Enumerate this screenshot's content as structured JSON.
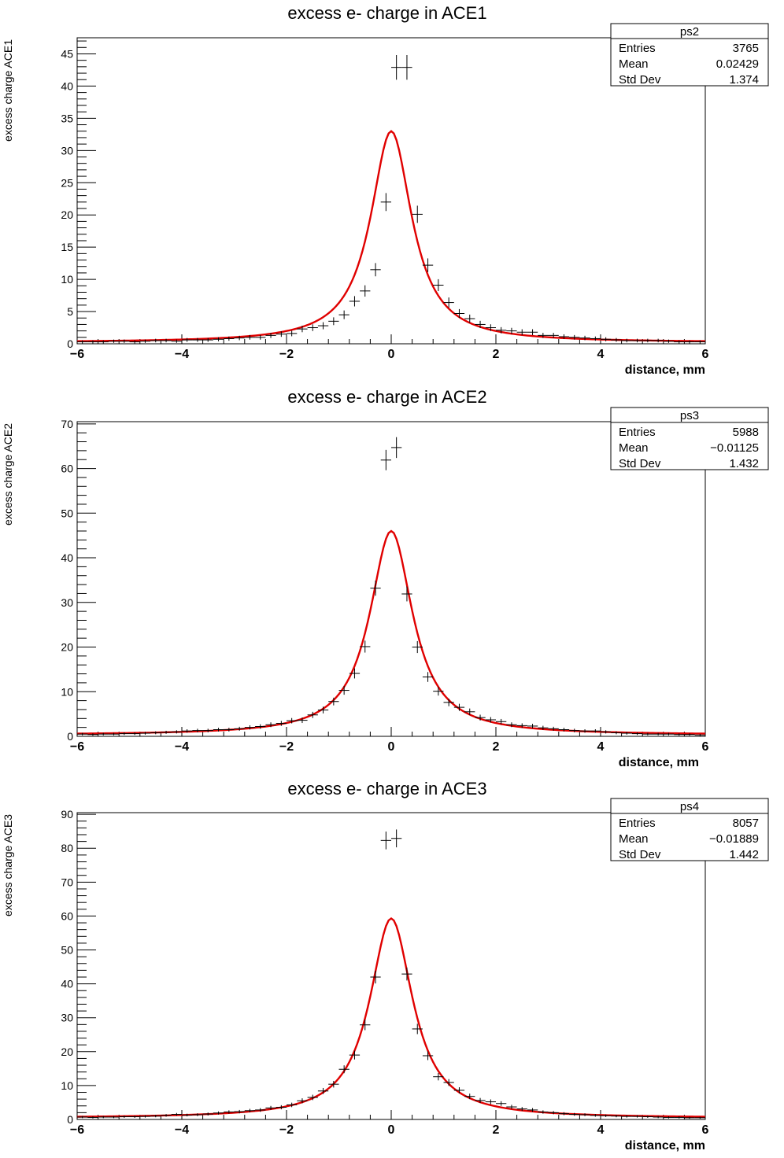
{
  "chart_data": [
    {
      "type": "scatter",
      "title": "excess e- charge in ACE1",
      "xlabel": "distance, mm",
      "ylabel": "excess charge ACE1",
      "xlim": [
        -6,
        6
      ],
      "ylim": [
        0,
        47.5
      ],
      "y_ticks": [
        0,
        5,
        10,
        15,
        20,
        25,
        30,
        35,
        40,
        45
      ],
      "x_ticks": [
        -6,
        -4,
        -2,
        0,
        2,
        4,
        6
      ],
      "legend_position": "top-right",
      "stats": {
        "name": "ps2",
        "rows": [
          {
            "label": "Entries",
            "value": "3765"
          },
          {
            "label": "Mean",
            "value": "0.02429"
          },
          {
            "label": "Std Dev",
            "value": "1.374"
          }
        ]
      },
      "fit": {
        "color": "#e00000",
        "peak": 33,
        "gamma": 0.48,
        "baseline": 0.2
      },
      "points": {
        "x": [
          -5.9,
          -5.7,
          -5.5,
          -5.3,
          -5.1,
          -4.9,
          -4.7,
          -4.5,
          -4.3,
          -4.1,
          -3.9,
          -3.7,
          -3.5,
          -3.3,
          -3.1,
          -2.9,
          -2.7,
          -2.5,
          -2.3,
          -2.1,
          -1.9,
          -1.7,
          -1.5,
          -1.3,
          -1.1,
          -0.9,
          -0.7,
          -0.5,
          -0.3,
          -0.1,
          0.1,
          0.3,
          0.5,
          0.7,
          0.9,
          1.1,
          1.3,
          1.5,
          1.7,
          1.9,
          2.1,
          2.3,
          2.5,
          2.7,
          2.9,
          3.1,
          3.3,
          3.5,
          3.7,
          3.9,
          4.1,
          4.3,
          4.5,
          4.7,
          4.9,
          5.1,
          5.3,
          5.5,
          5.7,
          5.9
        ],
        "y": [
          0.3,
          0.3,
          0.3,
          0.4,
          0.4,
          0.3,
          0.4,
          0.5,
          0.5,
          0.4,
          0.6,
          0.6,
          0.6,
          0.7,
          0.8,
          0.9,
          1.0,
          1.0,
          1.3,
          1.5,
          1.6,
          2.3,
          2.5,
          2.8,
          3.5,
          4.5,
          6.6,
          8.2,
          11.5,
          22.0,
          42.9,
          42.9,
          20.1,
          12.2,
          9.1,
          6.4,
          4.7,
          3.9,
          3.0,
          2.5,
          2.1,
          2.0,
          1.8,
          1.8,
          1.3,
          1.3,
          1.1,
          1.0,
          0.9,
          0.8,
          0.7,
          0.6,
          0.5,
          0.5,
          0.5,
          0.5,
          0.4,
          0.3,
          0.3,
          0.3
        ]
      }
    },
    {
      "type": "scatter",
      "title": "excess e- charge in ACE2",
      "xlabel": "distance, mm",
      "ylabel": "excess charge ACE2",
      "xlim": [
        -6,
        6
      ],
      "ylim": [
        0,
        70.5
      ],
      "y_ticks": [
        0,
        10,
        20,
        30,
        40,
        50,
        60,
        70
      ],
      "x_ticks": [
        -6,
        -4,
        -2,
        0,
        2,
        4,
        6
      ],
      "legend_position": "top-right",
      "stats": {
        "name": "ps3",
        "rows": [
          {
            "label": "Entries",
            "value": "5988"
          },
          {
            "label": "Mean",
            "value": "−0.01125"
          },
          {
            "label": "Std Dev",
            "value": "1.432"
          }
        ]
      },
      "fit": {
        "color": "#e00000",
        "peak": 46,
        "gamma": 0.5,
        "baseline": 0.3
      },
      "points": {
        "x": [
          -5.9,
          -5.7,
          -5.5,
          -5.3,
          -5.1,
          -4.9,
          -4.7,
          -4.5,
          -4.3,
          -4.1,
          -3.9,
          -3.7,
          -3.5,
          -3.3,
          -3.1,
          -2.9,
          -2.7,
          -2.5,
          -2.3,
          -2.1,
          -1.9,
          -1.7,
          -1.5,
          -1.3,
          -1.1,
          -0.9,
          -0.7,
          -0.5,
          -0.3,
          -0.1,
          0.1,
          0.3,
          0.5,
          0.7,
          0.9,
          1.1,
          1.3,
          1.5,
          1.7,
          1.9,
          2.1,
          2.3,
          2.5,
          2.7,
          2.9,
          3.1,
          3.3,
          3.5,
          3.7,
          3.9,
          4.1,
          4.3,
          4.5,
          4.7,
          4.9,
          5.1,
          5.3,
          5.5,
          5.7,
          5.9
        ],
        "y": [
          0.5,
          0.4,
          0.5,
          0.5,
          0.6,
          0.6,
          0.7,
          0.8,
          0.9,
          1.0,
          1.2,
          1.3,
          1.3,
          1.5,
          1.5,
          1.7,
          2.0,
          2.2,
          2.6,
          2.9,
          3.5,
          3.6,
          4.8,
          5.9,
          7.8,
          10.3,
          14.1,
          20.1,
          33.2,
          61.9,
          64.7,
          31.9,
          20.0,
          13.3,
          10.1,
          7.6,
          6.5,
          5.5,
          4.2,
          3.7,
          3.3,
          2.6,
          2.4,
          2.3,
          1.9,
          1.7,
          1.5,
          1.3,
          1.2,
          1.2,
          1.0,
          0.8,
          0.7,
          0.6,
          0.5,
          0.5,
          0.5,
          0.4,
          0.4,
          0.3
        ]
      }
    },
    {
      "type": "scatter",
      "title": "excess e- charge in ACE3",
      "xlabel": "distance, mm",
      "ylabel": "excess charge  ACE3",
      "xlim": [
        -6,
        6
      ],
      "ylim": [
        0,
        90.5
      ],
      "y_ticks": [
        0,
        10,
        20,
        30,
        40,
        50,
        60,
        70,
        80,
        90
      ],
      "x_ticks": [
        -6,
        -4,
        -2,
        0,
        2,
        4,
        6
      ],
      "legend_position": "top-right",
      "stats": {
        "name": "ps4",
        "rows": [
          {
            "label": "Entries",
            "value": "8057"
          },
          {
            "label": "Mean",
            "value": "−0.01889"
          },
          {
            "label": "Std Dev",
            "value": "1.442"
          }
        ]
      },
      "fit": {
        "color": "#e00000",
        "peak": 59.3,
        "gamma": 0.5,
        "baseline": 0.4
      },
      "points": {
        "x": [
          -5.9,
          -5.7,
          -5.5,
          -5.3,
          -5.1,
          -4.9,
          -4.7,
          -4.5,
          -4.3,
          -4.1,
          -3.9,
          -3.7,
          -3.5,
          -3.3,
          -3.1,
          -2.9,
          -2.7,
          -2.5,
          -2.3,
          -2.1,
          -1.9,
          -1.7,
          -1.5,
          -1.3,
          -1.1,
          -0.9,
          -0.7,
          -0.5,
          -0.3,
          -0.1,
          0.1,
          0.3,
          0.5,
          0.7,
          0.9,
          1.1,
          1.3,
          1.5,
          1.7,
          1.9,
          2.1,
          2.3,
          2.5,
          2.7,
          2.9,
          3.1,
          3.3,
          3.5,
          3.7,
          3.9,
          4.1,
          4.3,
          4.5,
          4.7,
          4.9,
          5.1,
          5.3,
          5.5,
          5.7,
          5.9
        ],
        "y": [
          0.7,
          0.6,
          0.7,
          0.7,
          0.8,
          0.8,
          0.9,
          1.0,
          1.2,
          1.5,
          1.3,
          1.4,
          1.6,
          1.9,
          2.2,
          2.3,
          2.6,
          2.8,
          3.4,
          3.6,
          4.3,
          5.5,
          6.5,
          8.4,
          10.4,
          14.8,
          19.0,
          27.9,
          42.0,
          82.3,
          82.9,
          42.9,
          26.7,
          18.8,
          12.6,
          10.9,
          8.6,
          6.8,
          5.6,
          5.2,
          4.7,
          3.7,
          3.1,
          2.8,
          2.2,
          2.0,
          1.7,
          1.5,
          1.4,
          1.2,
          1.1,
          1.0,
          0.9,
          0.9,
          0.8,
          0.7,
          0.6,
          0.6,
          0.5,
          0.5
        ]
      }
    }
  ]
}
